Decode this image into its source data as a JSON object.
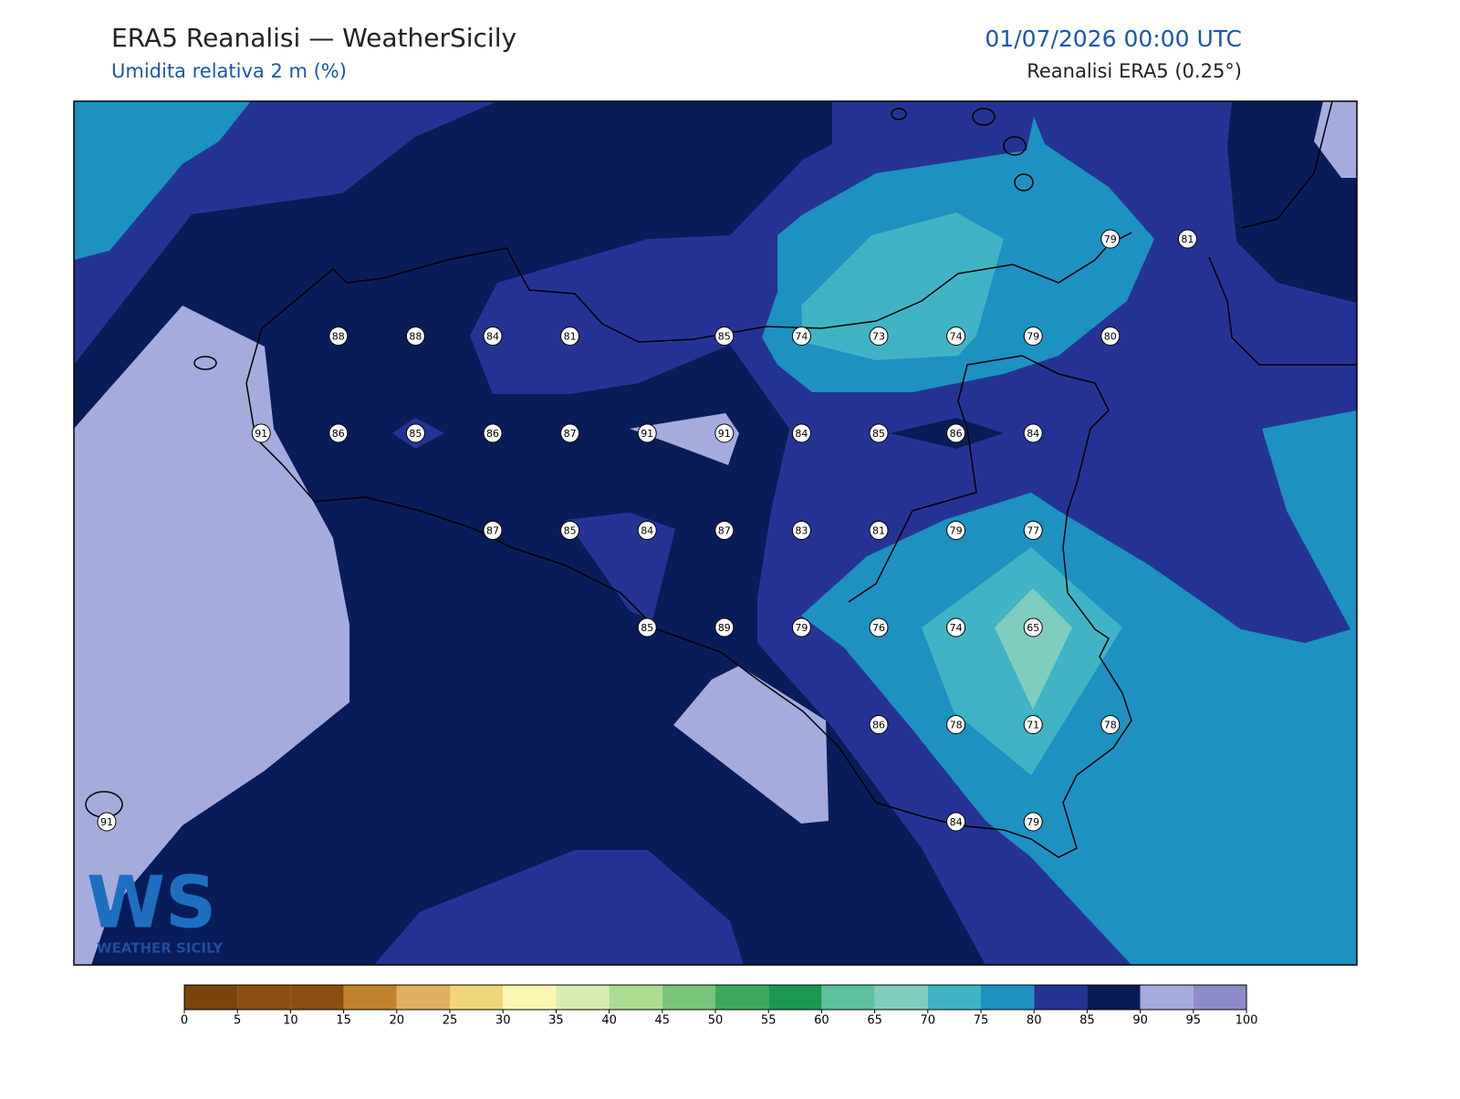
{
  "header": {
    "title": "ERA5 Reanalisi — WeatherSicily",
    "subtitle": "Umidita relativa 2 m (%)",
    "datetime": "01/07/2026 00:00 UTC",
    "source": "Reanalisi ERA5 (0.25°)"
  },
  "logo": {
    "mark": "WS",
    "text": "WEATHER SICILY"
  },
  "points": {
    "rows": [
      [
        null,
        null,
        null,
        null,
        null,
        null,
        null,
        null,
        null,
        null,
        null,
        null,
        null,
        79,
        81
      ],
      [
        null,
        null,
        null,
        88,
        88,
        84,
        81,
        null,
        85,
        74,
        73,
        74,
        79,
        80,
        null
      ],
      [
        null,
        null,
        91,
        86,
        85,
        86,
        87,
        91,
        91,
        84,
        85,
        86,
        84,
        null,
        null
      ],
      [
        null,
        null,
        null,
        null,
        null,
        87,
        85,
        84,
        87,
        83,
        81,
        79,
        77,
        null,
        null
      ],
      [
        null,
        null,
        null,
        null,
        null,
        null,
        null,
        85,
        89,
        79,
        76,
        74,
        65,
        null,
        null
      ],
      [
        null,
        null,
        null,
        null,
        null,
        null,
        null,
        null,
        null,
        null,
        86,
        78,
        71,
        78,
        null
      ],
      [
        91,
        null,
        null,
        null,
        null,
        null,
        null,
        null,
        null,
        null,
        null,
        84,
        79,
        null,
        null
      ]
    ]
  },
  "colorbar": {
    "ticks": [
      0,
      5,
      10,
      15,
      20,
      25,
      30,
      35,
      40,
      45,
      50,
      55,
      60,
      65,
      70,
      75,
      80,
      85,
      90,
      95,
      100
    ],
    "colors": [
      "#7b430a",
      "#8c4f12",
      "#8c4f12",
      "#c0822c",
      "#e0b060",
      "#f0d67a",
      "#f8f6b0",
      "#d8ecb0",
      "#acdc92",
      "#78c47a",
      "#3ea85a",
      "#1a9850",
      "#5cc09c",
      "#80cdc0",
      "#40b4c4",
      "#1d91c0",
      "#253494",
      "#081d58",
      "#a5acdc",
      "#8e8cc8"
    ]
  }
}
